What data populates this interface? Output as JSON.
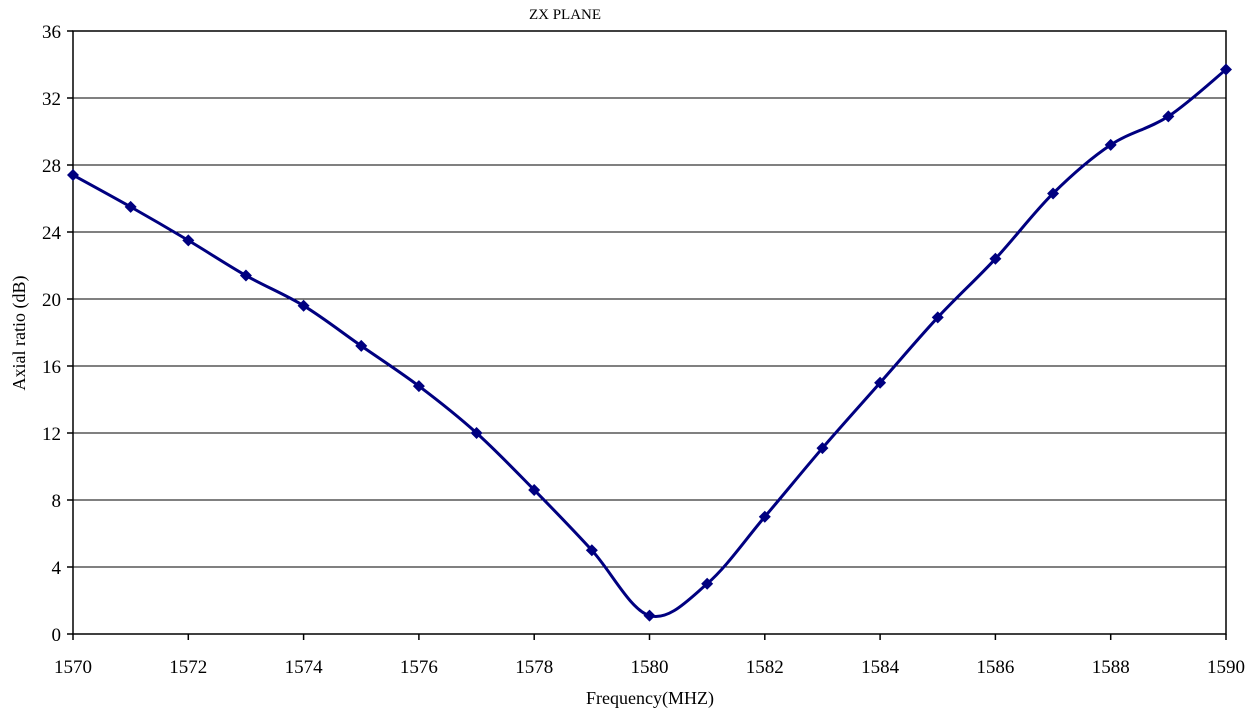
{
  "chart_data": {
    "type": "line",
    "title": "ZX PLANE",
    "xlabel": "Frequency(MHZ)",
    "ylabel": "Axial ratio (dB)",
    "xlim": [
      1570,
      1590
    ],
    "ylim": [
      0,
      36
    ],
    "x_ticks": [
      1570,
      1572,
      1574,
      1576,
      1578,
      1580,
      1582,
      1584,
      1586,
      1588,
      1590
    ],
    "y_ticks": [
      0,
      4,
      8,
      12,
      16,
      20,
      24,
      28,
      32,
      36
    ],
    "grid": "horizontal",
    "legend": "none",
    "series": [
      {
        "x": [
          1570,
          1571,
          1572,
          1573,
          1574,
          1575,
          1576,
          1577,
          1578,
          1579,
          1580,
          1581,
          1582,
          1583,
          1584,
          1585,
          1586,
          1587,
          1588,
          1589,
          1590
        ],
        "y": [
          27.4,
          25.5,
          23.5,
          21.4,
          19.6,
          17.2,
          14.8,
          12.0,
          8.6,
          5.0,
          1.1,
          3.0,
          7.0,
          11.1,
          15.0,
          18.9,
          22.4,
          26.3,
          29.2,
          30.9,
          33.7
        ],
        "color": "#000080"
      }
    ]
  }
}
